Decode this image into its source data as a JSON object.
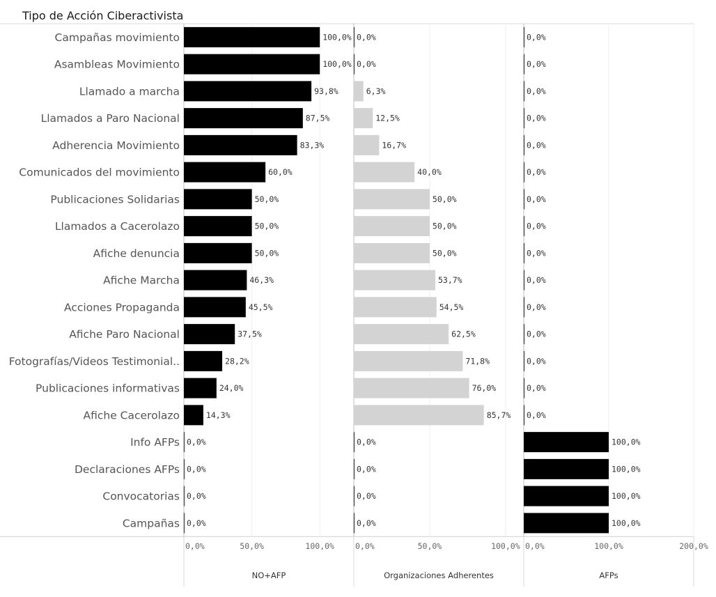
{
  "chart_data": {
    "type": "bar",
    "orientation": "horizontal",
    "title": "Tipo de Acción Ciberactivista",
    "categories": [
      "Campañas movimiento",
      "Asambleas Movimiento",
      "Llamado a marcha",
      "Llamados a Paro Nacional",
      "Adherencia Movimiento",
      "Comunicados del movimiento",
      "Publicaciones Solidarias",
      "Llamados a Cacerolazo",
      "Afiche denuncia",
      "Afiche Marcha",
      "Acciones Propaganda",
      "Afiche Paro Nacional",
      "Fotografías/Videos Testimonial..",
      "Publicaciones informativas",
      "Afiche Cacerolazo",
      "Info AFPs",
      "Declaraciones AFPs",
      "Convocatorias",
      "Campañas"
    ],
    "series": [
      {
        "name": "NO+AFP",
        "color": "#000000",
        "xlim": [
          0,
          125
        ],
        "ticks": [
          "0,0%",
          "50,0%",
          "100,0%"
        ],
        "tick_values": [
          0,
          50,
          100
        ],
        "values": [
          100,
          100,
          93.8,
          87.5,
          83.3,
          60.0,
          50.0,
          50.0,
          50.0,
          46.3,
          45.5,
          37.5,
          28.2,
          24.0,
          14.3,
          0,
          0,
          0,
          0
        ],
        "labels": [
          "100,0%",
          "100,0%",
          "93,8%",
          "87,5%",
          "83,3%",
          "60,0%",
          "50,0%",
          "50,0%",
          "50,0%",
          "46,3%",
          "45,5%",
          "37,5%",
          "28,2%",
          "24,0%",
          "14,3%",
          "0,0%",
          "0,0%",
          "0,0%",
          "0,0%"
        ]
      },
      {
        "name": "Organizaciones Adherentes",
        "color": "#d3d3d3",
        "xlim": [
          0,
          112
        ],
        "ticks": [
          "0,0%",
          "50,0%",
          "100,0%"
        ],
        "tick_values": [
          0,
          50,
          100
        ],
        "values": [
          0,
          0,
          6.3,
          12.5,
          16.7,
          40.0,
          50.0,
          50.0,
          50.0,
          53.7,
          54.5,
          62.5,
          71.8,
          76.0,
          85.7,
          0,
          0,
          0,
          0
        ],
        "labels": [
          "0,0%",
          "0,0%",
          "6,3%",
          "12,5%",
          "16,7%",
          "40,0%",
          "50,0%",
          "50,0%",
          "50,0%",
          "53,7%",
          "54,5%",
          "62,5%",
          "71,8%",
          "76,0%",
          "85,7%",
          "0,0%",
          "0,0%",
          "0,0%",
          "0,0%"
        ]
      },
      {
        "name": "AFPs",
        "color": "#000000",
        "xlim": [
          0,
          200
        ],
        "ticks": [
          "0,0%",
          "100,0%",
          "200,0%"
        ],
        "tick_values": [
          0,
          100,
          200
        ],
        "values": [
          0,
          0,
          0,
          0,
          0,
          0,
          0,
          0,
          0,
          0,
          0,
          0,
          0,
          0,
          0,
          100,
          100,
          100,
          100
        ],
        "labels": [
          "0,0%",
          "0,0%",
          "0,0%",
          "0,0%",
          "0,0%",
          "0,0%",
          "0,0%",
          "0,0%",
          "0,0%",
          "0,0%",
          "0,0%",
          "0,0%",
          "0,0%",
          "0,0%",
          "0,0%",
          "100,0%",
          "100,0%",
          "100,0%",
          "100,0%"
        ]
      }
    ],
    "grid": true,
    "legend": "none"
  }
}
